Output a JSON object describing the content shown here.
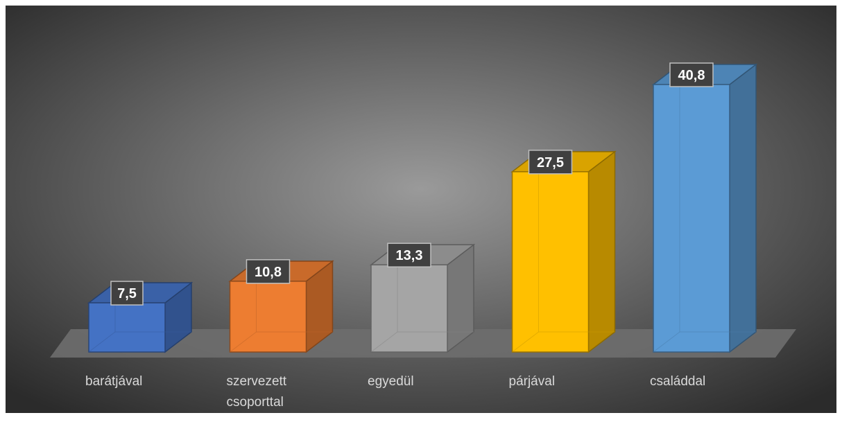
{
  "chart_data": {
    "type": "bar",
    "style": "3d-column",
    "title": "",
    "xlabel": "",
    "ylabel": "",
    "ylim": [
      0,
      45
    ],
    "grid": false,
    "legend": "none",
    "background": [
      "#9a9a9a",
      "#2b2b2b"
    ],
    "floor_color": "#6e6e6e",
    "label_box_color": "#404040",
    "categories": [
      {
        "label": "barátjával",
        "lines": [
          "barátjával"
        ],
        "value": 7.5,
        "value_label": "7,5",
        "color": "#4472c4"
      },
      {
        "label": "szervezett csoporttal",
        "lines": [
          "szervezett",
          "csoporttal"
        ],
        "value": 10.8,
        "value_label": "10,8",
        "color": "#ed7d31"
      },
      {
        "label": "egyedül",
        "lines": [
          "egyedül"
        ],
        "value": 13.3,
        "value_label": "13,3",
        "color": "#a5a5a5"
      },
      {
        "label": "párjával",
        "lines": [
          "párjával"
        ],
        "value": 27.5,
        "value_label": "27,5",
        "color": "#ffc000"
      },
      {
        "label": "családdal",
        "lines": [
          "családdal"
        ],
        "value": 40.8,
        "value_label": "40,8",
        "color": "#5b9bd5"
      }
    ]
  }
}
